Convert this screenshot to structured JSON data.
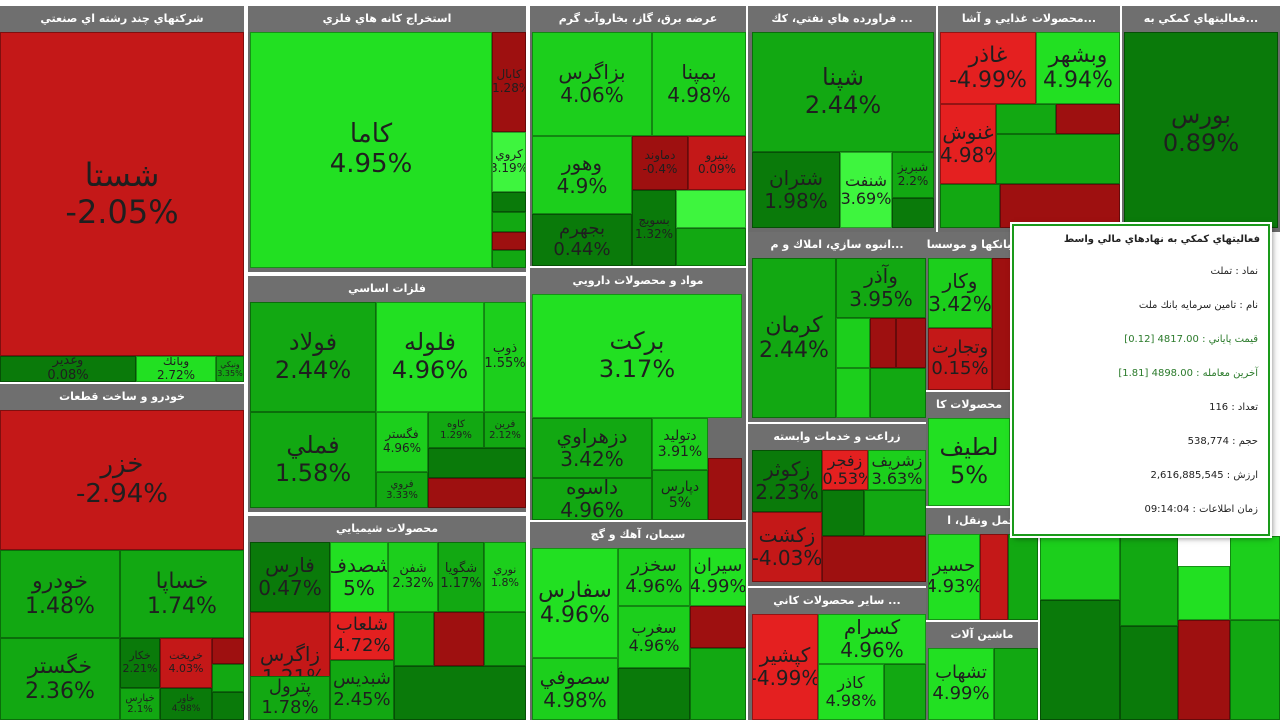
{
  "chart_data": {
    "type": "treemap",
    "colors": {
      "dark_green": "#0a7a0a",
      "mid_green": "#12a812",
      "green": "#1ccf1c",
      "bright_green": "#22e022",
      "light_green": "#3ef53e",
      "dark_red": "#9e1010",
      "red": "#c41818",
      "bright_red": "#e42020",
      "gray_header": "#6f6f6f"
    },
    "sectors": [
      {
        "title": "شرکتهاي چند رشته اي صنعتي",
        "tiles": [
          {
            "symbol": "شستا",
            "change": "-2.05%"
          },
          {
            "symbol": "وغدير",
            "change": "0.08%"
          },
          {
            "symbol": "وبانك",
            "change": "2.72%"
          },
          {
            "symbol": "ونيكي",
            "change": "3.35%"
          }
        ]
      },
      {
        "title": "خودرو و ساخت قطعات",
        "tiles": [
          {
            "symbol": "خزر",
            "change": "-2.94%"
          },
          {
            "symbol": "خودرو",
            "change": "1.48%"
          },
          {
            "symbol": "خساپا",
            "change": "1.74%"
          },
          {
            "symbol": "خگستر",
            "change": "2.36%"
          },
          {
            "symbol": "خكار",
            "change": "2.21%"
          },
          {
            "symbol": "خريخت",
            "change": "4.03%"
          },
          {
            "symbol": "خپارس",
            "change": "2.1%"
          },
          {
            "symbol": "خاور",
            "change": "4.98%"
          }
        ]
      },
      {
        "title": "استخراج كانه هاي فلزي",
        "tiles": [
          {
            "symbol": "كاما",
            "change": "4.95%"
          },
          {
            "symbol": "كابال",
            "change": "-1.28%"
          },
          {
            "symbol": "كروي",
            "change": "3.19%"
          }
        ]
      },
      {
        "title": "فلزات اساسي",
        "tiles": [
          {
            "symbol": "فولاد",
            "change": "2.44%"
          },
          {
            "symbol": "فلوله",
            "change": "4.96%"
          },
          {
            "symbol": "ذوب",
            "change": "1.55%"
          },
          {
            "symbol": "فملي",
            "change": "1.58%"
          },
          {
            "symbol": "فگستر",
            "change": "4.96%"
          },
          {
            "symbol": "كاوه",
            "change": "1.29%"
          },
          {
            "symbol": "فرين",
            "change": "2.12%"
          },
          {
            "symbol": "فروي",
            "change": "3.33%"
          }
        ]
      },
      {
        "title": "محصولات شيميايي",
        "tiles": [
          {
            "symbol": "فارس",
            "change": "0.47%"
          },
          {
            "symbol": "شصدف",
            "change": "5%"
          },
          {
            "symbol": "شفن",
            "change": "2.32%"
          },
          {
            "symbol": "شگويا",
            "change": "1.17%"
          },
          {
            "symbol": "نوري",
            "change": "1.8%"
          },
          {
            "symbol": "زاگرس",
            "change": "-1.21%"
          },
          {
            "symbol": "شلعاب",
            "change": "4.72%"
          },
          {
            "symbol": "پترول",
            "change": "1.78%"
          },
          {
            "symbol": "شبديس",
            "change": "2.45%"
          }
        ]
      },
      {
        "title": "عرضه برق، گاز، بخاروآب گرم",
        "tiles": [
          {
            "symbol": "بزاگرس",
            "change": "4.06%"
          },
          {
            "symbol": "بمپنا",
            "change": "4.98%"
          },
          {
            "symbol": "وهور",
            "change": "4.9%"
          },
          {
            "symbol": "دماوند",
            "change": "-0.4%"
          },
          {
            "symbol": "بنيرو",
            "change": "0.09%"
          },
          {
            "symbol": "بجهرم",
            "change": "0.44%"
          },
          {
            "symbol": "بسويچ",
            "change": "1.32%"
          }
        ]
      },
      {
        "title": "مواد و محصولات دارويي",
        "tiles": [
          {
            "symbol": "بركت",
            "change": "3.17%"
          },
          {
            "symbol": "دزهراوي",
            "change": "3.42%"
          },
          {
            "symbol": "داسوه",
            "change": "4.96%"
          },
          {
            "symbol": "دتوليد",
            "change": "3.91%"
          },
          {
            "symbol": "دپارس",
            "change": "5%"
          }
        ]
      },
      {
        "title": "سيمان، آهك و گچ",
        "tiles": [
          {
            "symbol": "سفارس",
            "change": "4.96%"
          },
          {
            "symbol": "سخزر",
            "change": "4.96%"
          },
          {
            "symbol": "سيران",
            "change": "4.99%"
          },
          {
            "symbol": "سصوفي",
            "change": "4.98%"
          },
          {
            "symbol": "سغرب",
            "change": "4.96%"
          }
        ]
      },
      {
        "title": "... فراورده هاي نفتي، كك",
        "tiles": [
          {
            "symbol": "شپنا",
            "change": "2.44%"
          },
          {
            "symbol": "شتران",
            "change": "1.98%"
          },
          {
            "symbol": "شنفت",
            "change": "3.69%"
          },
          {
            "symbol": "شبريز",
            "change": "2.2%"
          }
        ]
      },
      {
        "title": "...انبوه سازي، املاك و م",
        "tiles": [
          {
            "symbol": "كرمان",
            "change": "2.44%"
          },
          {
            "symbol": "وآذر",
            "change": "3.95%"
          }
        ]
      },
      {
        "title": "زراعت و خدمات وابسته",
        "tiles": [
          {
            "symbol": "زكوثر",
            "change": "2.23%"
          },
          {
            "symbol": "زفجر",
            "change": "-0.53%"
          },
          {
            "symbol": "زشريف",
            "change": "3.63%"
          },
          {
            "symbol": "زكشت",
            "change": "-4.03%"
          }
        ]
      },
      {
        "title": "... ساير محصولات كاني",
        "tiles": [
          {
            "symbol": "كپشير",
            "change": "-4.99%"
          },
          {
            "symbol": "كسرام",
            "change": "4.96%"
          },
          {
            "symbol": "كاذر",
            "change": "4.98%"
          }
        ]
      },
      {
        "title": "...محصولات غذايي و آشا",
        "tiles": [
          {
            "symbol": "غاذر",
            "change": "-4.99%"
          },
          {
            "symbol": "وبشهر",
            "change": "4.94%"
          },
          {
            "symbol": "غنوش",
            "change": "-4.98%"
          }
        ]
      },
      {
        "title": "...فعاليتهاي كمكي به",
        "tiles": [
          {
            "symbol": "بورس",
            "change": "0.89%"
          }
        ]
      },
      {
        "title": "بانكها و موسسا",
        "tiles": [
          {
            "symbol": "وكار",
            "change": "3.42%"
          },
          {
            "symbol": "وتجارت",
            "change": "0.15%"
          }
        ]
      },
      {
        "title": "محصولات كا",
        "tiles": [
          {
            "symbol": "لطيف",
            "change": "5%"
          }
        ]
      },
      {
        "title": "حمل ونقل، ا",
        "tiles": [
          {
            "symbol": "حسير",
            "change": "4.93%"
          }
        ]
      },
      {
        "title": "ماشين آلات",
        "tiles": [
          {
            "symbol": "تشهاب",
            "change": "4.99%"
          }
        ]
      }
    ]
  },
  "tooltip": {
    "title": "فعاليتهاي كمكي به نهادهاي مالي واسط",
    "symbol_line": "نماد : تملت",
    "name_line": "نام : تامين سرمايه بانك ملت",
    "close_line": "قيمت پاياني : 4817.00 [0.12]",
    "last_line": "آخرين معامله : 4898.00 [1.81]",
    "count_line": "تعداد : 116",
    "volume_line": "حجم : 538,774",
    "value_line": "ارزش : 2,616,885,545",
    "time_line": "زمان اطلاعات : 09:14:04"
  }
}
